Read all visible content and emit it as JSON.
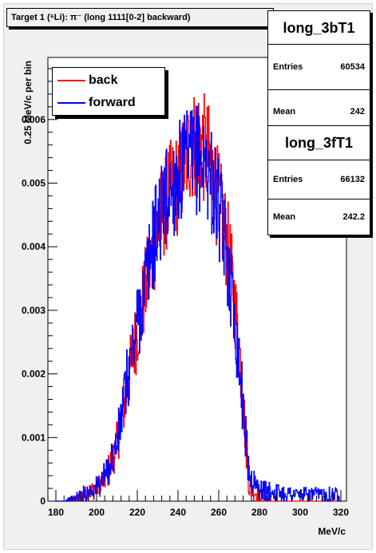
{
  "title": "Target 1 (⁶Li): π⁻ (long 1111[0-2] backward)",
  "stats_boxes": [
    {
      "name": "long_3bT1",
      "entries_label": "Entries",
      "entries": "60534",
      "mean_label": "Mean",
      "mean": "242"
    },
    {
      "name": "long_3fT1",
      "entries_label": "Entries",
      "entries": "66132",
      "mean_label": "Mean",
      "mean": "242.2"
    }
  ],
  "legend": [
    {
      "label": "back",
      "color": "#ff0000"
    },
    {
      "label": "forward",
      "color": "#0000ff"
    }
  ],
  "chart_data": {
    "type": "line",
    "style": "step-histogram",
    "title": "Target 1 (⁶Li): π⁻ (long 1111[0-2] backward)",
    "xlabel": "MeV/c",
    "ylabel": "0.25 MeV/c per bin",
    "xlim": [
      180,
      320
    ],
    "ylim": [
      0,
      0.0068
    ],
    "x_ticks": [
      180,
      200,
      220,
      240,
      260,
      280,
      300,
      320
    ],
    "x_tick_labels": [
      "180",
      "200",
      "220",
      "240",
      "260",
      "280",
      "300",
      "320"
    ],
    "y_ticks": [
      0,
      0.001,
      0.002,
      0.003,
      0.004,
      0.005,
      0.006
    ],
    "y_tick_labels": [
      "0",
      "0.001",
      "0.002",
      "0.003",
      "0.004",
      "0.005",
      "0.006"
    ],
    "grid": false,
    "legend_position": "top-left",
    "x": [
      180,
      185,
      190,
      195,
      200,
      205,
      210,
      215,
      220,
      225,
      230,
      235,
      240,
      245,
      250,
      255,
      260,
      265,
      270,
      275,
      280,
      285,
      290,
      295,
      300,
      305,
      310,
      315,
      320
    ],
    "series": [
      {
        "name": "back",
        "color": "#ff0000",
        "values": [
          0,
          0,
          3e-05,
          0.00012,
          0.0002,
          0.0004,
          0.0009,
          0.0018,
          0.0027,
          0.0035,
          0.0043,
          0.0048,
          0.005,
          0.0055,
          0.0057,
          0.0054,
          0.0047,
          0.0039,
          0.0025,
          0.0002,
          0.0001,
          0,
          0,
          0,
          0,
          0,
          0,
          0,
          0
        ]
      },
      {
        "name": "forward",
        "color": "#0000ff",
        "values": [
          0,
          0,
          5e-05,
          0.00014,
          0.00022,
          0.00042,
          0.0009,
          0.0019,
          0.0028,
          0.0036,
          0.0044,
          0.0048,
          0.0051,
          0.0053,
          0.0054,
          0.0052,
          0.0046,
          0.0037,
          0.0022,
          0.0004,
          0.00018,
          0.00015,
          0.00013,
          0.00012,
          0.0001,
          0.0001,
          0.0001,
          0.00011,
          0.0001
        ]
      }
    ]
  }
}
